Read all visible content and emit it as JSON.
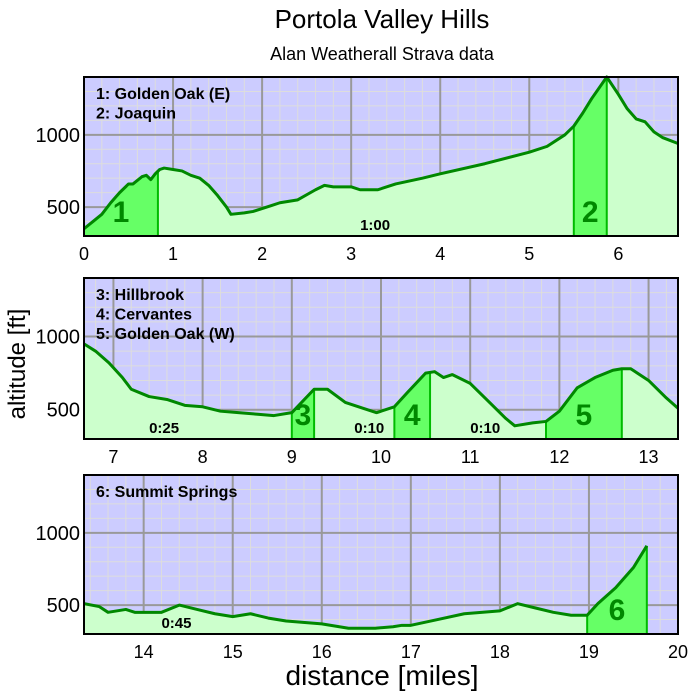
{
  "title": "Portola Valley Hills",
  "subtitle": "Alan Weatherall Strava data",
  "xlabel": "distance [miles]",
  "ylabel": "altitude [ft]",
  "colors": {
    "plot_bg": "#ccccff",
    "profile_fill": "#ccffcc",
    "climb_fill": "#66ff66",
    "line": "#008800",
    "climb_edge": "#00bb00",
    "label_green": "#008800",
    "major_grid": "#999999",
    "minor_grid": "#dddddd"
  },
  "chart_data": [
    {
      "type": "area",
      "panel": 1,
      "xlim": [
        0,
        6.67
      ],
      "ylim": [
        300,
        1400
      ],
      "xticks": [
        0,
        1,
        2,
        3,
        4,
        5,
        6
      ],
      "yticks": [
        500,
        1000
      ],
      "legend": [
        "1: Golden Oak (E)",
        "2: Joaquin"
      ],
      "annotations": [
        {
          "text": "1:00",
          "x": 3.1,
          "y": 330
        }
      ],
      "climbs": [
        {
          "label": "1",
          "x0": 0,
          "x1": 0.83
        },
        {
          "label": "2",
          "x0": 5.5,
          "x1": 5.87
        }
      ],
      "x": [
        0,
        0.1,
        0.2,
        0.3,
        0.4,
        0.5,
        0.55,
        0.65,
        0.7,
        0.75,
        0.8,
        0.85,
        0.9,
        1.0,
        1.1,
        1.2,
        1.3,
        1.4,
        1.5,
        1.6,
        1.65,
        1.8,
        1.9,
        2.0,
        2.1,
        2.2,
        2.4,
        2.6,
        2.7,
        2.8,
        3.0,
        3.1,
        3.3,
        3.5,
        3.8,
        4.0,
        4.5,
        5.0,
        5.2,
        5.4,
        5.5,
        5.6,
        5.7,
        5.87,
        6.0,
        6.1,
        6.2,
        6.3,
        6.4,
        6.5,
        6.67
      ],
      "y": [
        350,
        400,
        450,
        530,
        600,
        660,
        660,
        710,
        720,
        690,
        730,
        760,
        770,
        760,
        750,
        720,
        700,
        650,
        580,
        500,
        450,
        460,
        470,
        490,
        510,
        530,
        550,
        620,
        650,
        640,
        640,
        620,
        620,
        660,
        700,
        730,
        800,
        880,
        920,
        1000,
        1060,
        1150,
        1250,
        1400,
        1280,
        1180,
        1110,
        1090,
        1020,
        980,
        940
      ]
    },
    {
      "type": "area",
      "panel": 2,
      "xlim": [
        6.67,
        13.33
      ],
      "ylim": [
        300,
        1400
      ],
      "xticks": [
        7,
        8,
        9,
        10,
        11,
        12,
        13
      ],
      "yticks": [
        500,
        1000
      ],
      "legend": [
        "3: Hillbrook",
        "4: Cervantes",
        "5: Golden Oak (W)"
      ],
      "annotations": [
        {
          "text": "0:25",
          "x": 7.4,
          "y": 330
        },
        {
          "text": "0:10",
          "x": 9.7,
          "y": 330
        },
        {
          "text": "0:10",
          "x": 11.0,
          "y": 330
        }
      ],
      "climbs": [
        {
          "label": "3",
          "x0": 9.0,
          "x1": 9.25
        },
        {
          "label": "4",
          "x0": 10.15,
          "x1": 10.55
        },
        {
          "label": "5",
          "x0": 11.85,
          "x1": 12.7
        }
      ],
      "x": [
        6.67,
        6.8,
        6.95,
        7.1,
        7.2,
        7.4,
        7.6,
        7.8,
        8.0,
        8.2,
        8.4,
        8.6,
        8.8,
        9.0,
        9.25,
        9.4,
        9.6,
        9.8,
        9.95,
        10.15,
        10.3,
        10.5,
        10.6,
        10.7,
        10.8,
        11.0,
        11.2,
        11.4,
        11.5,
        11.7,
        11.85,
        12.0,
        12.2,
        12.4,
        12.6,
        12.7,
        12.8,
        13.0,
        13.2,
        13.33
      ],
      "y": [
        950,
        900,
        820,
        720,
        640,
        590,
        570,
        530,
        520,
        490,
        480,
        470,
        460,
        480,
        640,
        640,
        550,
        510,
        480,
        520,
        620,
        750,
        760,
        720,
        740,
        680,
        560,
        440,
        390,
        410,
        420,
        490,
        650,
        720,
        770,
        780,
        780,
        700,
        580,
        510
      ]
    },
    {
      "type": "area",
      "panel": 3,
      "xlim": [
        13.33,
        20
      ],
      "ylim": [
        300,
        1400
      ],
      "xticks": [
        14,
        15,
        16,
        17,
        18,
        19,
        20
      ],
      "yticks": [
        500,
        1000
      ],
      "legend": [
        "6: Summit Springs"
      ],
      "annotations": [
        {
          "text": "0:45",
          "x": 14.2,
          "y": 335
        }
      ],
      "climbs": [
        {
          "label": "6",
          "x0": 18.98,
          "x1": 19.65
        }
      ],
      "x": [
        13.33,
        13.5,
        13.6,
        13.8,
        13.9,
        14.0,
        14.2,
        14.4,
        14.6,
        14.8,
        15.0,
        15.2,
        15.4,
        15.6,
        16.0,
        16.3,
        16.6,
        16.8,
        16.9,
        17.0,
        17.3,
        17.6,
        18.0,
        18.2,
        18.4,
        18.6,
        18.8,
        18.98,
        19.1,
        19.3,
        19.5,
        19.65
      ],
      "y": [
        510,
        490,
        450,
        470,
        450,
        450,
        450,
        500,
        470,
        440,
        420,
        440,
        410,
        390,
        370,
        340,
        340,
        350,
        360,
        360,
        400,
        440,
        460,
        510,
        480,
        450,
        430,
        430,
        510,
        620,
        760,
        910
      ]
    }
  ]
}
